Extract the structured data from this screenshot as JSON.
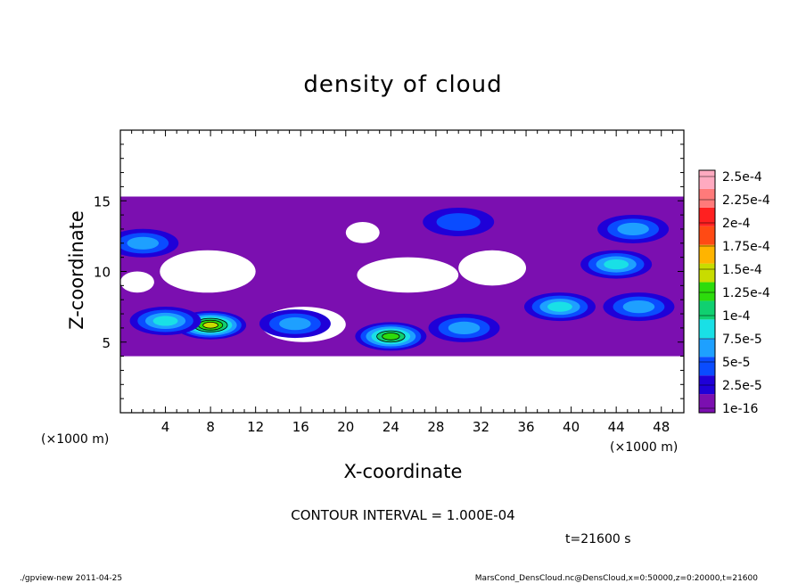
{
  "chart_data": {
    "type": "heatmap",
    "title": "density of cloud",
    "xlabel": "X-coordinate",
    "ylabel": "Z-coordinate",
    "x_unit": "(×1000 m)",
    "z_unit": "(×1000 m)",
    "xlim": [
      0,
      50
    ],
    "ylim": [
      0,
      20
    ],
    "x_ticks": [
      "4",
      "8",
      "12",
      "16",
      "20",
      "24",
      "28",
      "32",
      "36",
      "40",
      "44",
      "48"
    ],
    "y_ticks": [
      "5",
      "10",
      "15"
    ],
    "colorbar": {
      "labels": [
        "1e-16",
        "2.5e-5",
        "5e-5",
        "7.5e-5",
        "1e-4",
        "1.25e-4",
        "1.5e-4",
        "1.75e-4",
        "2e-4",
        "2.25e-4",
        "2.5e-4"
      ],
      "colors": [
        "#7b0fb0",
        "#1f00d8",
        "#0a4cff",
        "#1ea0ff",
        "#19e0e6",
        "#10d070",
        "#2ddc0c",
        "#c8dc00",
        "#ffb400",
        "#ff4a14",
        "#ff2020",
        "#ff7a7a",
        "#ffaac0"
      ]
    },
    "cloud_deck": {
      "top_z": 15.3,
      "bottom_z": 4.0,
      "x_start": 0,
      "x_end": 50
    },
    "clear_regions": [
      {
        "x": [
          3.5,
          12
        ],
        "z": [
          8.5,
          11.5
        ]
      },
      {
        "x": [
          12.5,
          20
        ],
        "z": [
          5.0,
          7.5
        ]
      },
      {
        "x": [
          21,
          30
        ],
        "z": [
          8.5,
          11
        ]
      },
      {
        "x": [
          30,
          36
        ],
        "z": [
          9.0,
          11.5
        ]
      },
      {
        "x": [
          20,
          23
        ],
        "z": [
          12.0,
          13.5
        ]
      },
      {
        "x": [
          0,
          3
        ],
        "z": [
          8.5,
          10
        ]
      }
    ],
    "density_blobs": [
      {
        "x": 2.0,
        "z": 12.0,
        "level": 3
      },
      {
        "x": 8.0,
        "z": 6.2,
        "level": 7
      },
      {
        "x": 4.0,
        "z": 6.5,
        "level": 4
      },
      {
        "x": 15.5,
        "z": 6.3,
        "level": 3
      },
      {
        "x": 24.0,
        "z": 5.4,
        "level": 6
      },
      {
        "x": 30.5,
        "z": 6.0,
        "level": 3
      },
      {
        "x": 39.0,
        "z": 7.5,
        "level": 4
      },
      {
        "x": 44.0,
        "z": 10.5,
        "level": 4
      },
      {
        "x": 45.5,
        "z": 13.0,
        "level": 3
      },
      {
        "x": 46.0,
        "z": 7.5,
        "level": 3
      },
      {
        "x": 30.0,
        "z": 13.5,
        "level": 2
      }
    ]
  },
  "annotations": {
    "contour_interval": "CONTOUR INTERVAL = 1.000E-04",
    "time": "t=21600 s",
    "footer_left": "./gpview-new   2011-04-25",
    "footer_right": "MarsCond_DensCloud.nc@DensCloud,x=0:50000,z=0:20000,t=21600"
  }
}
